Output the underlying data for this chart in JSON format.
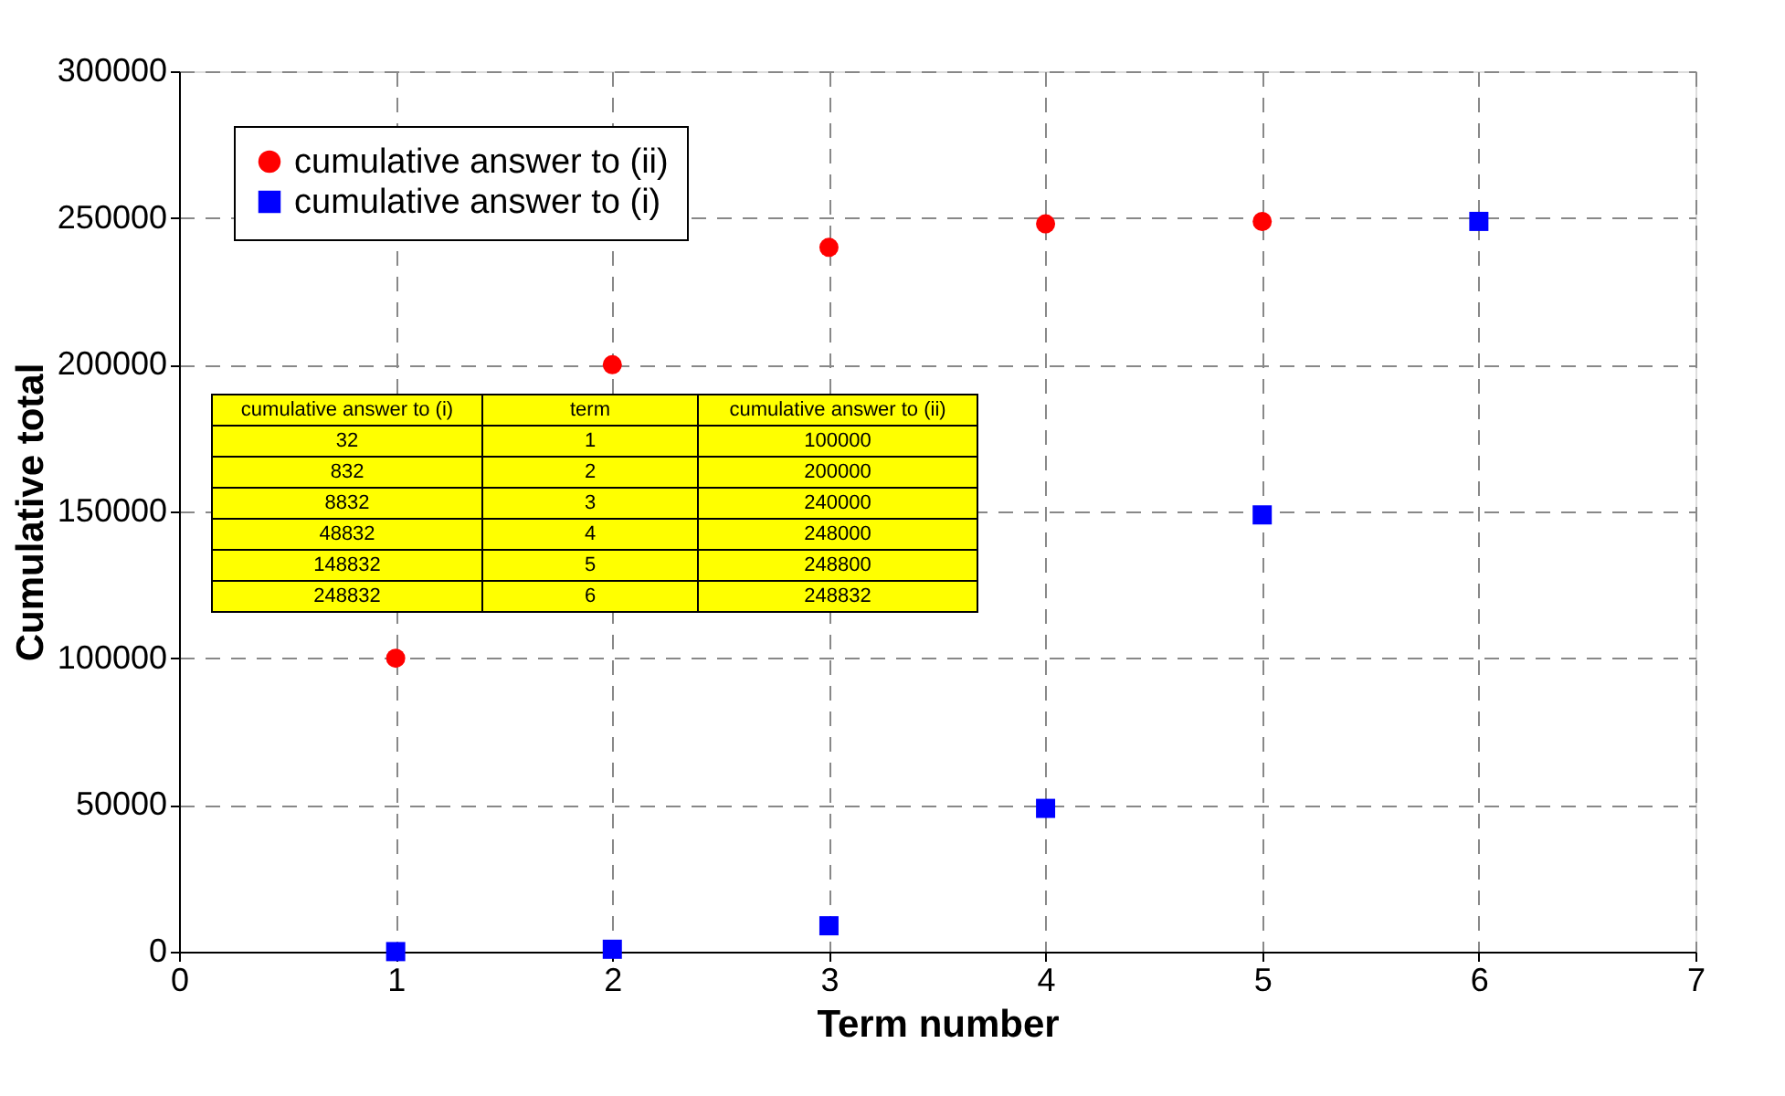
{
  "chart_data": {
    "type": "scatter",
    "xlabel": "Term number",
    "ylabel": "Cumulative total",
    "x": [
      1,
      2,
      3,
      4,
      5,
      6
    ],
    "series": [
      {
        "name": "cumulative answer to (ii)",
        "color": "#ff0000",
        "marker": "circle",
        "values": [
          100000,
          200000,
          240000,
          248000,
          248800,
          null
        ]
      },
      {
        "name": "cumulative answer to (i)",
        "color": "#0000ff",
        "marker": "square",
        "values": [
          32,
          832,
          8832,
          48832,
          148832,
          248832
        ]
      }
    ],
    "xlim": [
      0,
      7
    ],
    "xticks": [
      0,
      1,
      2,
      3,
      4,
      5,
      6,
      7
    ],
    "ylim": [
      0,
      300000
    ],
    "yticks": [
      0,
      50000,
      100000,
      150000,
      200000,
      250000,
      300000
    ],
    "grid": true,
    "legend": "top left",
    "annotations": [
      "cumulative answer to (i)",
      "term",
      "cumulative answer to (ii)",
      "32",
      "1",
      "100000",
      "832",
      "2",
      "200000",
      "8832",
      "3",
      "240000",
      "48832",
      "4",
      "248000",
      "148832",
      "5",
      "248800",
      "248832",
      "6",
      "248832"
    ]
  }
}
